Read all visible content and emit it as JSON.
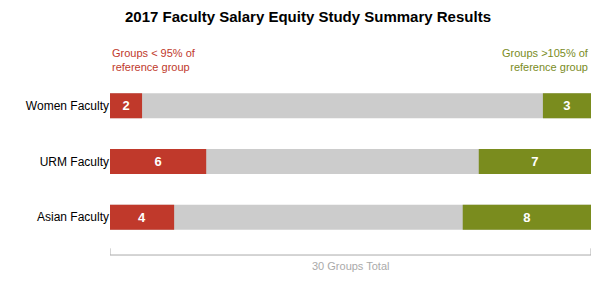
{
  "chart_data": {
    "type": "bar",
    "orientation": "horizontal",
    "title": "2017 Faculty Salary Equity Study Summary Results",
    "categories": [
      "Women Faculty",
      "URM Faculty",
      "Asian Faculty"
    ],
    "series": [
      {
        "name": "Groups < 95% of\nreference group",
        "color": "#c0392b",
        "values": [
          2,
          6,
          4
        ]
      },
      {
        "name": "Groups >105% of\nreference group",
        "color": "#7a8c1e",
        "values": [
          3,
          7,
          8
        ]
      }
    ],
    "total": 30,
    "total_color": "#cccccc",
    "total_label": "30 Groups Total",
    "annotation_color": "#aaaaaa",
    "xlim": [
      0,
      30
    ],
    "data_labels": true,
    "tick_labels": "y",
    "grid": false
  }
}
